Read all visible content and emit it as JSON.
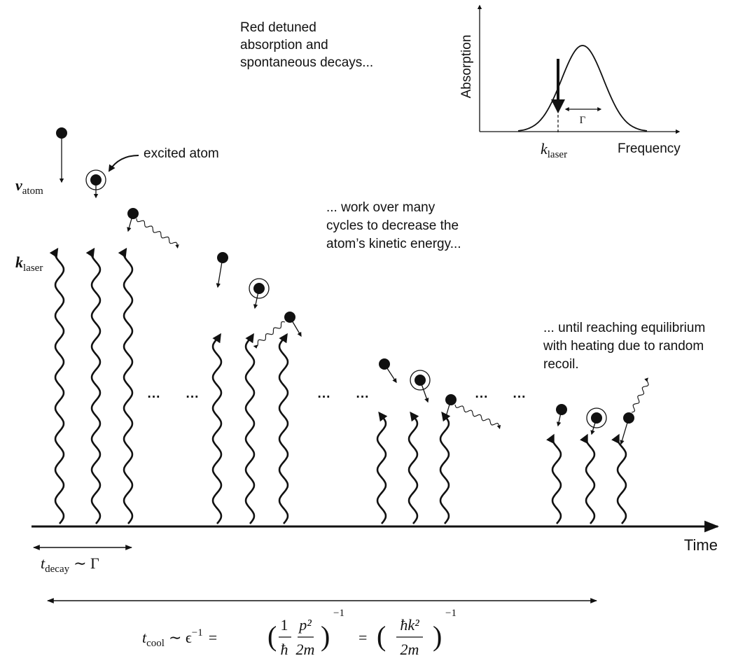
{
  "inset": {
    "caption_lines": [
      "Red detuned",
      "absorption and",
      "spontaneous decays..."
    ],
    "y_label": "Absorption",
    "x_label": "Frequency",
    "k_symbol": "k",
    "k_sub": "laser",
    "width_label": "Γ"
  },
  "excited_label": "excited atom",
  "v_atom": {
    "symbol": "v",
    "sub": "atom"
  },
  "k_laser": {
    "symbol": "k",
    "sub": "laser"
  },
  "middle_note": [
    "... work over many",
    "cycles to decrease the",
    "atom’s kinetic energy..."
  ],
  "end_note": [
    "... until reaching equilibrium",
    "with heating due to random",
    "recoil."
  ],
  "dots": [
    "···",
    "···",
    "···",
    "···",
    "···",
    "···"
  ],
  "axis_label": "Time",
  "t_decay": {
    "symbol": "t",
    "sub": "decay",
    "rel": "∼ Γ"
  },
  "t_cool": {
    "symbol": "t",
    "sub": "cool",
    "rel": "∼ ϵ",
    "exp": "−1",
    "eq": "=",
    "open": "(",
    "close": ")",
    "frac1_num": "1",
    "frac1_den": "ħ",
    "frac2_num": "p²",
    "frac2_den": "2m",
    "frac3_num": "ħk²",
    "frac3_den": "2m"
  }
}
